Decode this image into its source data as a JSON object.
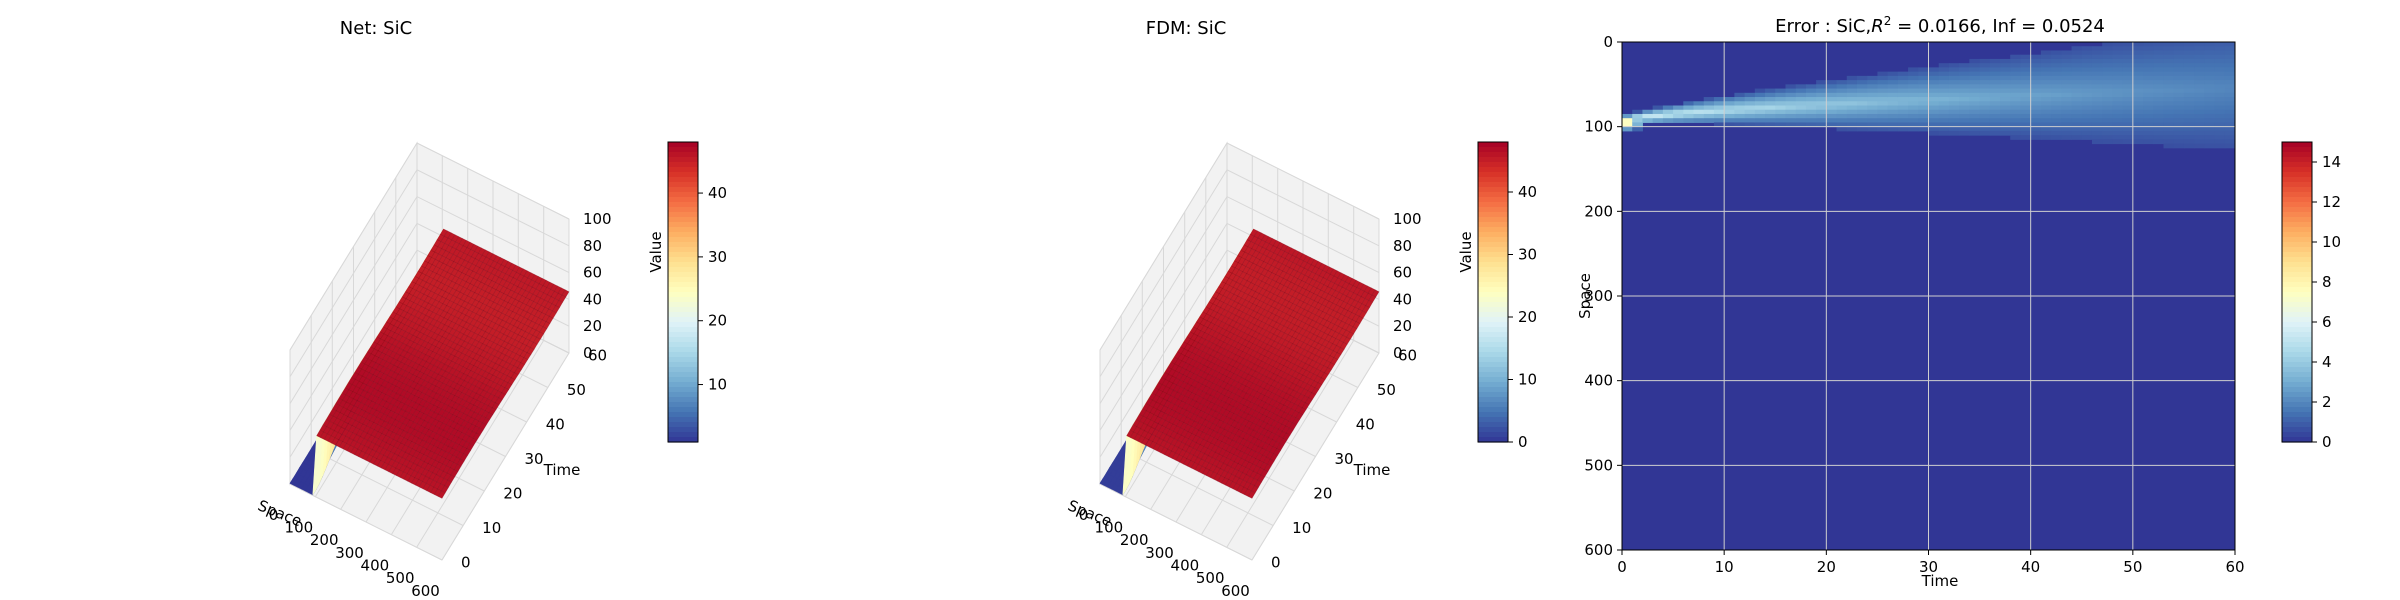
{
  "colors": {
    "colormap": "RdYlBu_r",
    "pane": "#f2f2f2",
    "grid": "#d8d8d8",
    "heatmap_base": "#313695",
    "heatmap_grid": "#cfcfcf"
  },
  "chart_data": [
    {
      "type": "surface",
      "title": "Net: SiC",
      "xlabel": "Space",
      "ylabel": "Time",
      "zlabel": "Value",
      "xlim": [
        0,
        600
      ],
      "ylim": [
        0,
        60
      ],
      "zlim": [
        0,
        100
      ],
      "xticks": [
        "0",
        "100",
        "200",
        "300",
        "400",
        "500",
        "600"
      ],
      "yticks": [
        "0",
        "10",
        "20",
        "30",
        "40",
        "50",
        "60"
      ],
      "zticks": [
        "0",
        "20",
        "40",
        "60",
        "80",
        "100"
      ],
      "plateau_value": 46,
      "front_space": 100,
      "colorbar": {
        "range": [
          1,
          48
        ],
        "ticks": [
          "10",
          "20",
          "30",
          "40"
        ]
      }
    },
    {
      "type": "surface",
      "title": "FDM: SiC",
      "xlabel": "Space",
      "ylabel": "Time",
      "zlabel": "Value",
      "xlim": [
        0,
        600
      ],
      "ylim": [
        0,
        60
      ],
      "zlim": [
        0,
        100
      ],
      "xticks": [
        "0",
        "100",
        "200",
        "300",
        "400",
        "500",
        "600"
      ],
      "yticks": [
        "0",
        "10",
        "20",
        "30",
        "40",
        "50",
        "60"
      ],
      "zticks": [
        "0",
        "20",
        "40",
        "60",
        "80",
        "100"
      ],
      "plateau_value": 46,
      "front_space": 100,
      "colorbar": {
        "range": [
          0,
          48
        ],
        "ticks": [
          "0",
          "10",
          "20",
          "30",
          "40"
        ]
      }
    },
    {
      "type": "heatmap",
      "title_prefix": "Error : SiC,",
      "title_r2": "R",
      "title_r2_sup": "2",
      "title_rest": " = 0.0166, Inf = 0.0524",
      "xlabel": "Time",
      "ylabel": "Space",
      "xlim": [
        0,
        60
      ],
      "ylim": [
        600,
        0
      ],
      "xticks": [
        "0",
        "10",
        "20",
        "30",
        "40",
        "50",
        "60"
      ],
      "yticks": [
        "0",
        "100",
        "200",
        "300",
        "400",
        "500",
        "600"
      ],
      "peak_error": 15,
      "peak_at": {
        "time": 0.5,
        "space": 95
      },
      "colorbar": {
        "range": [
          0,
          15
        ],
        "ticks": [
          "0",
          "2",
          "4",
          "6",
          "8",
          "10",
          "12",
          "14"
        ]
      }
    }
  ]
}
